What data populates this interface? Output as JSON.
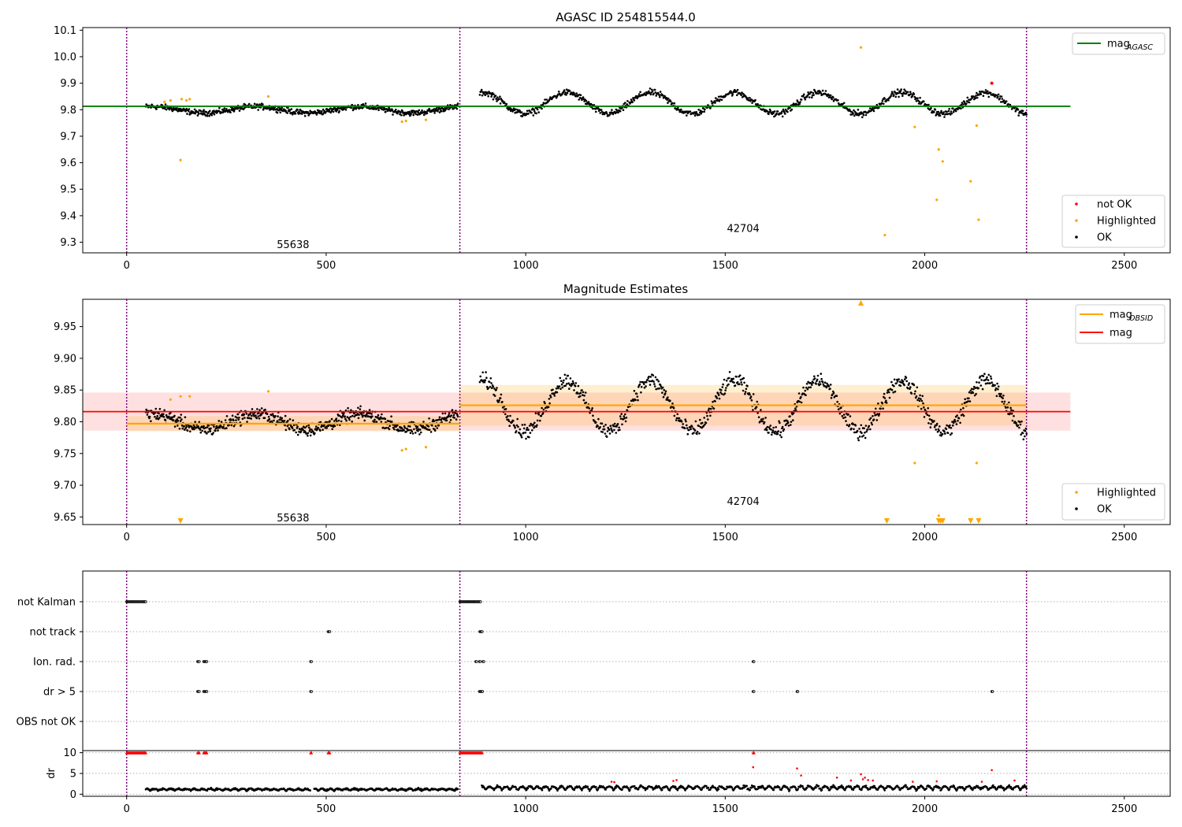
{
  "colors": {
    "ok": "#000000",
    "highlighted": "#ffa500",
    "not_ok": "#ff0000",
    "agasc_line": "#008000",
    "obsid_line": "#ffa500",
    "mag_line": "#ff0000",
    "boundary": "#800080",
    "gridline": "#b0b0b0"
  },
  "chart_data": [
    {
      "type": "scatter",
      "title": "AGASC ID 254815544.0",
      "xlim": [
        -110,
        2615
      ],
      "ylim": [
        9.26,
        10.11
      ],
      "x_ticks": [
        0,
        500,
        1000,
        1500,
        2000,
        2500
      ],
      "y_ticks": [
        9.3,
        9.4,
        9.5,
        9.6,
        9.7,
        9.8,
        9.9,
        10.0,
        10.1
      ],
      "boundaries": [
        0,
        835,
        2255
      ],
      "obsid_labels": [
        {
          "text": "55638",
          "x": 417,
          "y": 9.29
        },
        {
          "text": "42704",
          "x": 1545,
          "y": 9.35
        }
      ],
      "hlines": [
        {
          "name": "mag_AGASC",
          "y": 9.813,
          "x_range": [
            -110,
            2365
          ]
        }
      ],
      "legend_upper": [
        {
          "label_main": "mag",
          "label_sub": "AGASC",
          "kind": "line",
          "color": "#008000"
        }
      ],
      "legend_lower": [
        {
          "label": "not OK",
          "kind": "dot",
          "color": "#ff0000"
        },
        {
          "label": "Highlighted",
          "kind": "dot",
          "color": "#ffa500"
        },
        {
          "label": "OK",
          "kind": "dot",
          "color": "#000000"
        }
      ],
      "highlighted_points": [
        [
          95,
          9.83
        ],
        [
          110,
          9.835
        ],
        [
          135,
          9.61
        ],
        [
          138,
          9.84
        ],
        [
          150,
          9.835
        ],
        [
          158,
          9.84
        ],
        [
          355,
          9.85
        ],
        [
          690,
          9.755
        ],
        [
          700,
          9.758
        ],
        [
          750,
          9.762
        ],
        [
          1840,
          10.035
        ],
        [
          1900,
          9.327
        ],
        [
          1975,
          9.735
        ],
        [
          2030,
          9.46
        ],
        [
          2035,
          9.65
        ],
        [
          2045,
          9.605
        ],
        [
          2115,
          9.53
        ],
        [
          2130,
          9.74
        ],
        [
          2135,
          9.385
        ]
      ],
      "not_ok_points": [
        [
          2168,
          9.9
        ]
      ],
      "ok_segments": [
        {
          "x0": 48,
          "x1": 830,
          "base": 9.8,
          "amp": 0.012,
          "period": 260,
          "noise": 0.013,
          "n": 620
        },
        {
          "x0": 885,
          "x1": 2255,
          "base": 9.825,
          "amp": 0.04,
          "period": 210,
          "noise": 0.015,
          "n": 900
        }
      ]
    },
    {
      "type": "scatter",
      "title": "Magnitude Estimates",
      "xlim": [
        -110,
        2615
      ],
      "ylim": [
        9.638,
        9.993
      ],
      "x_ticks": [
        0,
        500,
        1000,
        1500,
        2000,
        2500
      ],
      "y_ticks": [
        9.65,
        9.7,
        9.75,
        9.8,
        9.85,
        9.9,
        9.95
      ],
      "boundaries": [
        0,
        835,
        2255
      ],
      "obsid_labels": [
        {
          "text": "55638",
          "x": 417,
          "y": 9.648
        },
        {
          "text": "42704",
          "x": 1545,
          "y": 9.674
        }
      ],
      "mag_line": {
        "y": 9.816,
        "band": [
          9.786,
          9.846
        ],
        "x_range": [
          -110,
          2365
        ]
      },
      "obsid_lines": [
        {
          "x0": 0,
          "x1": 835,
          "y": 9.797,
          "band": [
            9.785,
            9.809
          ]
        },
        {
          "x0": 835,
          "x1": 2255,
          "y": 9.826,
          "band": [
            9.794,
            9.858
          ]
        }
      ],
      "legend_upper": [
        {
          "label_main": "mag",
          "label_sub": "OBSID",
          "kind": "line",
          "color": "#ffa500"
        },
        {
          "label_main": "mag",
          "label_sub": "",
          "kind": "line",
          "color": "#ff0000"
        }
      ],
      "legend_lower": [
        {
          "label": "Highlighted",
          "kind": "dot",
          "color": "#ffa500"
        },
        {
          "label": "OK",
          "kind": "dot",
          "color": "#000000"
        }
      ],
      "highlighted_points": [
        [
          110,
          9.835
        ],
        [
          135,
          9.84
        ],
        [
          158,
          9.84
        ],
        [
          355,
          9.848
        ],
        [
          690,
          9.755
        ],
        [
          700,
          9.757
        ],
        [
          750,
          9.76
        ],
        [
          1975,
          9.735
        ],
        [
          2035,
          9.652
        ],
        [
          2130,
          9.735
        ]
      ],
      "edge_markers_bottom": [
        135,
        1905,
        2035,
        2040,
        2045,
        2115,
        2135
      ],
      "edge_markers_top": [
        1840
      ],
      "ok_segments": [
        {
          "x0": 48,
          "x1": 830,
          "base": 9.8,
          "amp": 0.012,
          "period": 260,
          "noise": 0.013,
          "n": 620
        },
        {
          "x0": 885,
          "x1": 2255,
          "base": 9.825,
          "amp": 0.04,
          "period": 210,
          "noise": 0.015,
          "n": 900
        }
      ]
    },
    {
      "type": "scatter",
      "title": "",
      "xlim": [
        -110,
        2615
      ],
      "x_ticks": [
        0,
        500,
        1000,
        1500,
        2000,
        2500
      ],
      "boundaries": [
        0,
        835,
        2255
      ],
      "categories": [
        "not Kalman",
        "not track",
        "Ion. rad.",
        "dr > 5",
        "OBS not OK"
      ],
      "flag_ranges": {
        "not Kalman": [
          [
            0,
            48
          ],
          [
            835,
            888
          ]
        ],
        "not track": [
          [
            505,
            510
          ],
          [
            885,
            892
          ]
        ],
        "Ion. rad.": [
          [
            178,
            182
          ],
          [
            193,
            202
          ],
          [
            461,
            463
          ],
          [
            875,
            877
          ],
          [
            884,
            886
          ],
          [
            893,
            895
          ],
          [
            1570,
            1572
          ]
        ],
        "dr > 5": [
          [
            178,
            182
          ],
          [
            193,
            202
          ],
          [
            461,
            463
          ],
          [
            884,
            892
          ],
          [
            1570,
            1572
          ],
          [
            1680,
            1682
          ],
          [
            2168,
            2170
          ]
        ],
        "OBS not OK": []
      }
    },
    {
      "type": "scatter",
      "ylabel": "dr",
      "xlim": [
        -110,
        2615
      ],
      "ylim": [
        -0.5,
        10.5
      ],
      "x_ticks": [
        0,
        500,
        1000,
        1500,
        2000,
        2500
      ],
      "y_ticks": [
        0,
        5,
        10
      ],
      "boundaries": [
        0,
        835,
        2255
      ],
      "saturated_ranges": [
        [
          0,
          48
        ],
        [
          178,
          182
        ],
        [
          193,
          202
        ],
        [
          461,
          463
        ],
        [
          505,
          510
        ],
        [
          835,
          892
        ],
        [
          1570,
          1572
        ]
      ],
      "outliers": [
        [
          1215,
          3.0
        ],
        [
          1222,
          2.9
        ],
        [
          1370,
          3.2
        ],
        [
          1378,
          3.4
        ],
        [
          1570,
          6.5
        ],
        [
          1680,
          6.2
        ],
        [
          1690,
          4.5
        ],
        [
          1780,
          4.0
        ],
        [
          1815,
          3.3
        ],
        [
          1840,
          4.8
        ],
        [
          1845,
          3.6
        ],
        [
          1850,
          4.0
        ],
        [
          1858,
          3.4
        ],
        [
          1870,
          3.3
        ],
        [
          1970,
          3.0
        ],
        [
          2030,
          3.1
        ],
        [
          2143,
          3.0
        ],
        [
          2168,
          5.8
        ],
        [
          2225,
          3.3
        ]
      ],
      "ok_segments": [
        {
          "x0": 48,
          "x1": 460,
          "base": 0.9,
          "amp": 0.4,
          "noise": 0.25,
          "n": 330
        },
        {
          "x0": 470,
          "x1": 830,
          "base": 0.9,
          "amp": 0.4,
          "noise": 0.25,
          "n": 300
        },
        {
          "x0": 890,
          "x1": 2255,
          "base": 1.0,
          "amp": 0.9,
          "noise": 0.35,
          "n": 850
        }
      ]
    }
  ]
}
